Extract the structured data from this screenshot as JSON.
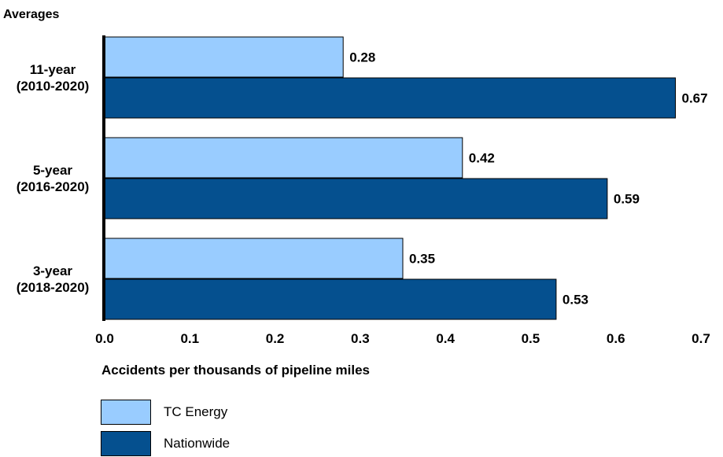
{
  "chart_data": {
    "type": "bar",
    "orientation": "horizontal",
    "y_axis_title": "Averages",
    "xlabel": "Accidents per thousands of pipeline miles",
    "categories": [
      [
        "11-year",
        "(2010-2020)"
      ],
      [
        "5-year",
        "(2016-2020)"
      ],
      [
        "3-year",
        "(2018-2020)"
      ]
    ],
    "series": [
      {
        "name": "TC Energy",
        "values": [
          0.28,
          0.42,
          0.35
        ],
        "labels": [
          "0.28",
          "0.42",
          "0.35"
        ],
        "color": "#99ccff"
      },
      {
        "name": "Nationwide",
        "values": [
          0.67,
          0.59,
          0.53
        ],
        "labels": [
          "0.67",
          "0.59",
          "0.53"
        ],
        "color": "#05508f"
      }
    ],
    "xlim": [
      0,
      0.7
    ],
    "xticks": [
      "0.0",
      "0.1",
      "0.2",
      "0.3",
      "0.4",
      "0.5",
      "0.6",
      "0.7"
    ],
    "grid": false,
    "legend_position": "bottom-left"
  }
}
